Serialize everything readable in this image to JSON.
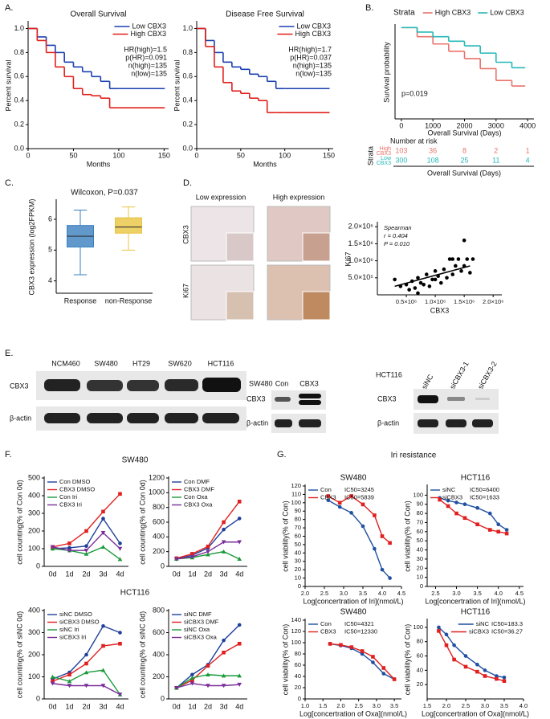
{
  "figure": {
    "panel_labels": [
      "A.",
      "B.",
      "C.",
      "D.",
      "E.",
      "F.",
      "G."
    ],
    "risk_table": {
      "title": "Number at risk",
      "strata_label": "Strata",
      "xlabel": "Overall Survival (Days)",
      "rows": [
        {
          "label": [
            "High",
            "CBX3"
          ],
          "color": "#e8736b",
          "values": [
            103,
            36,
            8,
            2,
            1
          ]
        },
        {
          "label": [
            "Low",
            "CBX3"
          ],
          "color": "#26b8b8",
          "values": [
            300,
            108,
            25,
            11,
            4
          ]
        }
      ]
    },
    "ihc": {
      "columns": [
        "Low expression",
        "High expression"
      ],
      "rows": [
        "CBX3",
        "Ki67"
      ]
    },
    "blots": {
      "left": {
        "lanes": [
          "NCM460",
          "SW480",
          "HT29",
          "SW620",
          "HCT116"
        ],
        "rows": [
          "CBX3",
          "β-actin"
        ]
      },
      "middle": {
        "cell": "SW480",
        "lanes": [
          "Con",
          "CBX3"
        ],
        "rows": [
          "CBX3",
          "β-actin"
        ]
      },
      "right": {
        "cell": "HCT116",
        "lanes": [
          "siNC",
          "siCBX3-1",
          "siCBX3-2"
        ],
        "rows": [
          "CBX3",
          "β-actin"
        ]
      }
    },
    "f_titles": [
      "SW480",
      "HCT116"
    ],
    "g_title": "Iri resistance"
  },
  "chart_data": [
    {
      "type": "step",
      "title": "Overall Survival",
      "xlabel": "Months",
      "ylabel": "Percent survival",
      "x": [
        0,
        10,
        20,
        30,
        40,
        50,
        60,
        70,
        80,
        90,
        100,
        150
      ],
      "xlim": [
        0,
        155
      ],
      "xticks": [
        0,
        50,
        100,
        150
      ],
      "ylim": [
        0,
        1.05
      ],
      "yticks": [
        {
          "value": 0,
          "label": "0.0"
        },
        {
          "value": 0.2,
          "label": "0.2"
        },
        {
          "value": 0.4,
          "label": "0.4"
        },
        {
          "value": 0.6,
          "label": "0.6"
        },
        {
          "value": 0.8,
          "label": "0.8"
        },
        {
          "value": 1,
          "label": "1.0"
        }
      ],
      "legend": "upper right",
      "series": [
        {
          "name": "Low CBX3",
          "color": "#1a3fb0",
          "values": [
            1,
            0.93,
            0.86,
            0.8,
            0.72,
            0.68,
            0.64,
            0.6,
            0.56,
            0.5,
            0.5,
            0.5
          ]
        },
        {
          "name": "High CBX3",
          "color": "#e0201c",
          "values": [
            1,
            0.9,
            0.8,
            0.68,
            0.6,
            0.5,
            0.45,
            0.44,
            0.42,
            0.34,
            0.34,
            0.34
          ]
        }
      ],
      "annotations": [
        "HR(high)=1.5",
        "p(HR)=0.091",
        "n(high)=135",
        "n(low)=135"
      ]
    },
    {
      "type": "step",
      "title": "Disease Free Survival",
      "xlabel": "Months",
      "ylabel": "Percent survival",
      "x": [
        0,
        10,
        20,
        30,
        40,
        50,
        60,
        70,
        80,
        90,
        100,
        150
      ],
      "xlim": [
        0,
        155
      ],
      "xticks": [
        0,
        50,
        100,
        150
      ],
      "ylim": [
        0,
        1.05
      ],
      "yticks": [
        {
          "value": 0,
          "label": "0.0"
        },
        {
          "value": 0.2,
          "label": "0.2"
        },
        {
          "value": 0.4,
          "label": "0.4"
        },
        {
          "value": 0.6,
          "label": "0.6"
        },
        {
          "value": 0.8,
          "label": "0.8"
        },
        {
          "value": 1,
          "label": "1.0"
        }
      ],
      "legend": "upper right",
      "series": [
        {
          "name": "Low CBX3",
          "color": "#1a3fb0",
          "values": [
            1,
            0.9,
            0.8,
            0.72,
            0.68,
            0.66,
            0.62,
            0.6,
            0.56,
            0.5,
            0.5,
            0.5
          ]
        },
        {
          "name": "High CBX3",
          "color": "#e0201c",
          "values": [
            1,
            0.85,
            0.68,
            0.55,
            0.48,
            0.46,
            0.42,
            0.4,
            0.3,
            0.3,
            0.3,
            0.3
          ]
        }
      ],
      "annotations": [
        "HR(high)=1.7",
        "p(HR)=0.037",
        "n(high)=135",
        "n(low)=135"
      ]
    },
    {
      "type": "step",
      "xlabel": "Overall Survival (Days)",
      "ylabel": "Survival probability",
      "x": [
        0,
        500,
        1000,
        1500,
        2000,
        2500,
        3000,
        3500,
        3900
      ],
      "xlim": [
        -200,
        4200
      ],
      "xticks": [
        0,
        1000,
        2000,
        3000,
        4000
      ],
      "ylim": [
        0,
        1.02
      ],
      "legend": "above",
      "legend_title": "Strata",
      "series": [
        {
          "name": "High CBX3",
          "color": "#e8736b",
          "values": [
            1,
            0.9,
            0.82,
            0.74,
            0.66,
            0.55,
            0.42,
            0.36,
            0.36
          ]
        },
        {
          "name": "Low CBX3",
          "color": "#26b8b8",
          "values": [
            1,
            0.95,
            0.9,
            0.85,
            0.8,
            0.72,
            0.62,
            0.56,
            0.56
          ]
        }
      ],
      "annotations": [
        "p=0.019"
      ]
    },
    {
      "type": "box",
      "title": "Wilcoxon, P=0.037",
      "ylabel": "CBX3 expression (log2FPKM)",
      "categories": [
        "Response",
        "non-Response"
      ],
      "values": [
        {
          "min": 4.2,
          "q1": 5.1,
          "median": 5.45,
          "q3": 5.8,
          "max": 6.3
        },
        {
          "min": 5.0,
          "q1": 5.55,
          "median": 5.75,
          "q3": 6.05,
          "max": 6.4
        }
      ],
      "colors": [
        "#3a7fc1",
        "#e8c440"
      ],
      "ylim": [
        3.6,
        6.6
      ],
      "yticks": [
        4,
        5,
        6
      ]
    },
    {
      "type": "scatter",
      "xlabel": "CBX3",
      "ylabel": "Ki67",
      "x": [
        300000,
        400000,
        500000,
        550000,
        600000,
        650000,
        700000,
        750000,
        800000,
        850000,
        900000,
        950000,
        1000000,
        1050000,
        1100000,
        1150000,
        1200000,
        1250000,
        1300000,
        1350000,
        1400000,
        1450000,
        1500000,
        1550000,
        1600000,
        1650000,
        700000,
        1000000,
        1300000,
        1500000
      ],
      "y": [
        450000,
        250000,
        300000,
        150000,
        400000,
        200000,
        500000,
        350000,
        300000,
        600000,
        250000,
        450000,
        700000,
        550000,
        350000,
        750000,
        500000,
        1050000,
        600000,
        850000,
        1050000,
        700000,
        1600000,
        1050000,
        650000,
        1050000,
        50000,
        450000,
        1050000,
        850000
      ],
      "fit_line": {
        "x": [
          300000,
          1600000
        ],
        "y": [
          250000,
          850000
        ]
      },
      "color": "#000000",
      "xlim": [
        0,
        2150000
      ],
      "xticks": [
        {
          "value": 500000,
          "label": "0.5×10⁶"
        },
        {
          "value": 1000000,
          "label": "1.0×10⁶"
        },
        {
          "value": 1500000,
          "label": "1.5×10⁶"
        },
        {
          "value": 2000000,
          "label": "2.0×10⁶"
        }
      ],
      "ylim": [
        0,
        2100000
      ],
      "yticks": [
        {
          "value": 500000,
          "label": "5.0×10⁵"
        },
        {
          "value": 1000000,
          "label": "1.0×10⁶"
        },
        {
          "value": 1500000,
          "label": "1.5×10⁶"
        },
        {
          "value": 2000000,
          "label": "2.0×10⁶"
        }
      ],
      "annotations": [
        "Spearman",
        "r = 0.404",
        "P = 0.010"
      ]
    },
    {
      "type": "line",
      "ylabel": "cell counting(% of Con 0d)",
      "categories": [
        "0d",
        "1d",
        "2d",
        "3d",
        "4d"
      ],
      "ylim": [
        0,
        500
      ],
      "yticks": [
        0,
        100,
        200,
        300,
        400,
        500
      ],
      "legend": "upper left",
      "series": [
        {
          "name": "Con DMSO",
          "color": "#1f3f99",
          "values": [
            100,
            105,
            115,
            270,
            130
          ]
        },
        {
          "name": "CBX3 DMSO",
          "color": "#e02020",
          "values": [
            110,
            130,
            200,
            310,
            410
          ]
        },
        {
          "name": "Con Iri",
          "color": "#1a9a3a",
          "values": [
            100,
            90,
            70,
            110,
            40
          ]
        },
        {
          "name": "CBX3 Iri",
          "color": "#7a2d9a",
          "values": [
            110,
            90,
            90,
            190,
            100
          ]
        }
      ]
    },
    {
      "type": "line",
      "ylabel": "cell counting(% of Con 0d)",
      "categories": [
        "0d",
        "1d",
        "2d",
        "3d",
        "4d"
      ],
      "ylim": [
        0,
        1200
      ],
      "yticks": [
        0,
        200,
        400,
        600,
        800,
        1000,
        1200
      ],
      "legend": "upper left",
      "series": [
        {
          "name": "Con DMF",
          "color": "#1f3f99",
          "values": [
            100,
            150,
            250,
            500,
            650
          ]
        },
        {
          "name": "CBX3 DMF",
          "color": "#e02020",
          "values": [
            110,
            170,
            270,
            600,
            880
          ]
        },
        {
          "name": "Con Oxa",
          "color": "#1a9a3a",
          "values": [
            100,
            120,
            160,
            200,
            100
          ]
        },
        {
          "name": "CBX3 Oxa",
          "color": "#7a2d9a",
          "values": [
            100,
            130,
            200,
            330,
            330
          ]
        }
      ]
    },
    {
      "type": "line",
      "ylabel": "cell counting(% of siNC 0d)",
      "categories": [
        "0d",
        "1d",
        "2d",
        "3d",
        "4d"
      ],
      "ylim": [
        0,
        400
      ],
      "yticks": [
        0,
        100,
        200,
        300,
        400
      ],
      "legend": "upper left",
      "series": [
        {
          "name": "siNC DMSO",
          "color": "#1f3f99",
          "values": [
            90,
            120,
            200,
            330,
            300
          ]
        },
        {
          "name": "siCBX3 DMSO",
          "color": "#e02020",
          "values": [
            80,
            110,
            160,
            240,
            250
          ]
        },
        {
          "name": "siNC Iri",
          "color": "#1a9a3a",
          "values": [
            100,
            80,
            120,
            130,
            20
          ]
        },
        {
          "name": "siCBX3 Iri",
          "color": "#7a2d9a",
          "values": [
            70,
            60,
            60,
            60,
            20
          ]
        }
      ]
    },
    {
      "type": "line",
      "ylabel": "cell counting(% of siNC 0d)",
      "categories": [
        "0d",
        "1d",
        "2d",
        "3d",
        "4d"
      ],
      "ylim": [
        0,
        800
      ],
      "yticks": [
        0,
        200,
        400,
        600,
        800
      ],
      "legend": "upper left",
      "series": [
        {
          "name": "siNC DMF",
          "color": "#1f3f99",
          "values": [
            100,
            220,
            310,
            530,
            670
          ]
        },
        {
          "name": "siCBX3 DMF",
          "color": "#e02020",
          "values": [
            100,
            170,
            300,
            420,
            500
          ]
        },
        {
          "name": "siNC Oxa",
          "color": "#1a9a3a",
          "values": [
            100,
            190,
            220,
            210,
            210
          ]
        },
        {
          "name": "siCBX3 Oxa",
          "color": "#7a2d9a",
          "values": [
            100,
            140,
            120,
            120,
            130
          ]
        }
      ]
    },
    {
      "type": "line",
      "title": "SW480",
      "xlabel": "Log[concertration of Iri](nmol/L)",
      "ylabel": "cell viability(% of Con)",
      "x": [
        2.6,
        2.9,
        3.2,
        3.5,
        3.8,
        4.0,
        4.2
      ],
      "xlim": [
        2.0,
        4.5
      ],
      "xticks": [
        {
          "value": 2,
          "label": "2.0"
        },
        2.5,
        {
          "value": 3,
          "label": "3.0"
        },
        3.5,
        {
          "value": 4,
          "label": "4.0"
        },
        4.5
      ],
      "ylim": [
        0,
        120
      ],
      "yticks": [
        0,
        10,
        20,
        30,
        40,
        50,
        60,
        70,
        80,
        90,
        100,
        110,
        120
      ],
      "legend": "upper left",
      "series": [
        {
          "name": "Con",
          "ic50": "IC50=3245",
          "color": "#1f4fa0",
          "values": [
            103,
            95,
            88,
            72,
            45,
            20,
            10
          ]
        },
        {
          "name": "CBX3",
          "ic50": "IC50=5839",
          "color": "#e02020",
          "values": [
            108,
            100,
            108,
            98,
            85,
            60,
            52
          ]
        }
      ]
    },
    {
      "type": "line",
      "title": "HCT116",
      "xlabel": "Log[concertration of Iri](nmol/L)",
      "ylabel": "cell viability(% of Con)",
      "x": [
        2.6,
        2.8,
        3.0,
        3.2,
        3.5,
        3.8,
        4.0,
        4.2
      ],
      "xlim": [
        2.3,
        4.6
      ],
      "xticks": [
        2.5,
        {
          "value": 3,
          "label": "3.0"
        },
        3.5,
        {
          "value": 4,
          "label": "4.0"
        },
        4.5
      ],
      "ylim": [
        0,
        110
      ],
      "yticks": [
        0,
        10,
        20,
        30,
        40,
        50,
        60,
        70,
        80,
        90,
        100
      ],
      "legend": "upper left",
      "series": [
        {
          "name": "siNC",
          "ic50": "IC50=6400",
          "color": "#1f4fa0",
          "values": [
            97,
            94,
            92,
            90,
            86,
            80,
            68,
            62
          ]
        },
        {
          "name": "siCBX3",
          "ic50": "IC50=1633",
          "color": "#e02020",
          "values": [
            95,
            88,
            80,
            75,
            68,
            62,
            60,
            58
          ]
        }
      ]
    },
    {
      "type": "line",
      "title": "SW480",
      "xlabel": "Log[concertration of Oxa](nmol/L)",
      "ylabel": "cell viability(% of Con)",
      "x": [
        1.7,
        2.0,
        2.3,
        2.6,
        2.9,
        3.2,
        3.5
      ],
      "xlim": [
        1.0,
        3.7
      ],
      "xticks": [
        {
          "value": 1,
          "label": "1.0"
        },
        1.5,
        {
          "value": 2,
          "label": "2.0"
        },
        2.5,
        {
          "value": 3,
          "label": "3.0"
        },
        3.5
      ],
      "ylim": [
        0,
        140
      ],
      "yticks": [
        0,
        20,
        40,
        60,
        80,
        100,
        120,
        140
      ],
      "legend": "upper left",
      "series": [
        {
          "name": "Con",
          "ic50": "IC50=4321",
          "color": "#1f4fa0",
          "values": [
            98,
            95,
            90,
            80,
            65,
            45,
            35
          ]
        },
        {
          "name": "CBX3",
          "ic50": "IC50=12330",
          "color": "#e02020",
          "values": [
            98,
            96,
            92,
            85,
            75,
            55,
            35
          ]
        }
      ]
    },
    {
      "type": "line",
      "title": "HCT116",
      "xlabel": "Log[concertration of Oxa](nmol/L)",
      "ylabel": "cell viability(% of Con)",
      "x": [
        1.8,
        2.0,
        2.2,
        2.5,
        2.8,
        3.0,
        3.3,
        3.5
      ],
      "xlim": [
        1.5,
        4.0
      ],
      "xticks": [
        1.5,
        {
          "value": 2,
          "label": "2.0"
        },
        2.5,
        {
          "value": 3,
          "label": "3.0"
        },
        3.5,
        {
          "value": 4,
          "label": "4.0"
        }
      ],
      "ylim": [
        0,
        110
      ],
      "yticks": [
        20,
        40,
        60,
        80,
        100
      ],
      "legend": "upper right",
      "series": [
        {
          "name": "siNC",
          "ic50": "IC50=183.3",
          "color": "#1f4fa0",
          "values": [
            100,
            90,
            75,
            60,
            48,
            40,
            32,
            30
          ]
        },
        {
          "name": "siCBX3",
          "ic50": "IC50=36.27",
          "color": "#e02020",
          "values": [
            95,
            75,
            55,
            45,
            38,
            32,
            28,
            25
          ]
        }
      ]
    }
  ]
}
